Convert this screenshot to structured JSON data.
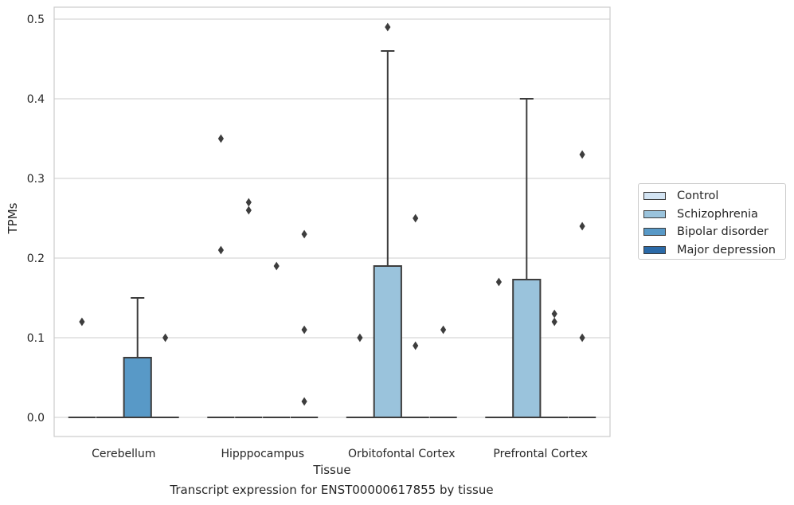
{
  "caption": "Transcript expression for ENST00000617855 by tissue",
  "chart_data": {
    "type": "box",
    "xlabel": "Tissue",
    "ylabel": "TPMs",
    "ylim": [
      -0.024,
      0.515
    ],
    "yticks": [
      0.0,
      0.1,
      0.2,
      0.3,
      0.4,
      0.5
    ],
    "ytick_labels": [
      "0.0",
      "0.1",
      "0.2",
      "0.3",
      "0.4",
      "0.5"
    ],
    "grid": "horizontal",
    "legend_position": "center-right",
    "categories": [
      "Cerebellum",
      "Hipppocampus",
      "Orbitofontal Cortex",
      "Prefrontal Cortex"
    ],
    "series": [
      {
        "name": "Control",
        "color": "#d3e4f3",
        "boxes": [
          {
            "category": "Cerebellum",
            "q1": 0.0,
            "median": 0.0,
            "q3": 0.0,
            "whisker_low": 0.0,
            "whisker_high": 0.0,
            "outliers": [
              0.12
            ]
          },
          {
            "category": "Hipppocampus",
            "q1": 0.0,
            "median": 0.0,
            "q3": 0.0,
            "whisker_low": 0.0,
            "whisker_high": 0.0,
            "outliers": [
              0.35,
              0.21
            ]
          },
          {
            "category": "Orbitofontal Cortex",
            "q1": 0.0,
            "median": 0.0,
            "q3": 0.0,
            "whisker_low": 0.0,
            "whisker_high": 0.0,
            "outliers": [
              0.1
            ]
          },
          {
            "category": "Prefrontal Cortex",
            "q1": 0.0,
            "median": 0.0,
            "q3": 0.0,
            "whisker_low": 0.0,
            "whisker_high": 0.0,
            "outliers": [
              0.17
            ]
          }
        ]
      },
      {
        "name": "Schizophrenia",
        "color": "#9ac3dc",
        "boxes": [
          {
            "category": "Cerebellum",
            "q1": 0.0,
            "median": 0.0,
            "q3": 0.0,
            "whisker_low": 0.0,
            "whisker_high": 0.0,
            "outliers": []
          },
          {
            "category": "Hipppocampus",
            "q1": 0.0,
            "median": 0.0,
            "q3": 0.0,
            "whisker_low": 0.0,
            "whisker_high": 0.0,
            "outliers": [
              0.27,
              0.26
            ]
          },
          {
            "category": "Orbitofontal Cortex",
            "q1": 0.0,
            "median": 0.0,
            "q3": 0.19,
            "whisker_low": 0.0,
            "whisker_high": 0.46,
            "outliers": [
              0.49
            ]
          },
          {
            "category": "Prefrontal Cortex",
            "q1": 0.0,
            "median": 0.0,
            "q3": 0.173,
            "whisker_low": 0.0,
            "whisker_high": 0.4,
            "outliers": []
          }
        ]
      },
      {
        "name": "Bipolar disorder",
        "color": "#5899c7",
        "boxes": [
          {
            "category": "Cerebellum",
            "q1": 0.0,
            "median": 0.0,
            "q3": 0.075,
            "whisker_low": 0.0,
            "whisker_high": 0.15,
            "outliers": []
          },
          {
            "category": "Hipppocampus",
            "q1": 0.0,
            "median": 0.0,
            "q3": 0.0,
            "whisker_low": 0.0,
            "whisker_high": 0.0,
            "outliers": [
              0.19
            ]
          },
          {
            "category": "Orbitofontal Cortex",
            "q1": 0.0,
            "median": 0.0,
            "q3": 0.0,
            "whisker_low": 0.0,
            "whisker_high": 0.0,
            "outliers": [
              0.25,
              0.09
            ]
          },
          {
            "category": "Prefrontal Cortex",
            "q1": 0.0,
            "median": 0.0,
            "q3": 0.0,
            "whisker_low": 0.0,
            "whisker_high": 0.0,
            "outliers": [
              0.13,
              0.12
            ]
          }
        ]
      },
      {
        "name": "Major depression",
        "color": "#2b6aa8",
        "boxes": [
          {
            "category": "Cerebellum",
            "q1": 0.0,
            "median": 0.0,
            "q3": 0.0,
            "whisker_low": 0.0,
            "whisker_high": 0.0,
            "outliers": [
              0.1
            ]
          },
          {
            "category": "Hipppocampus",
            "q1": 0.0,
            "median": 0.0,
            "q3": 0.0,
            "whisker_low": 0.0,
            "whisker_high": 0.0,
            "outliers": [
              0.23,
              0.11,
              0.02
            ]
          },
          {
            "category": "Orbitofontal Cortex",
            "q1": 0.0,
            "median": 0.0,
            "q3": 0.0,
            "whisker_low": 0.0,
            "whisker_high": 0.0,
            "outliers": [
              0.11
            ]
          },
          {
            "category": "Prefrontal Cortex",
            "q1": 0.0,
            "median": 0.0,
            "q3": 0.0,
            "whisker_low": 0.0,
            "whisker_high": 0.0,
            "outliers": [
              0.33,
              0.24,
              0.1
            ]
          }
        ]
      }
    ]
  }
}
